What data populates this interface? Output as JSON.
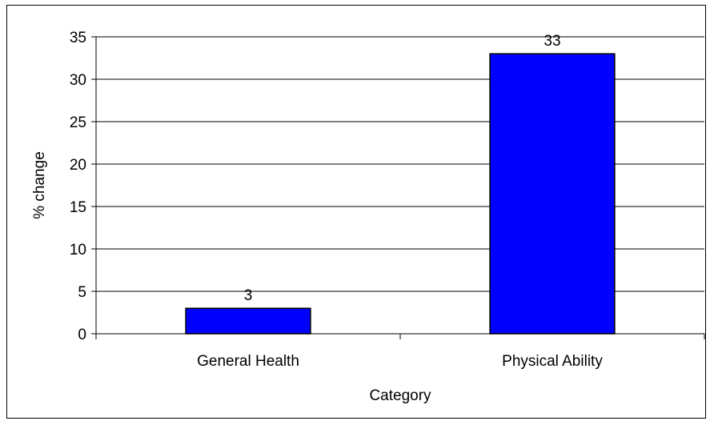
{
  "chart_data": {
    "type": "bar",
    "categories": [
      "General Health",
      "Physical Ability"
    ],
    "values": [
      3,
      33
    ],
    "data_labels": [
      "3",
      "33"
    ],
    "xlabel": "Category",
    "ylabel": "% change",
    "ylim": [
      0,
      35
    ],
    "yticks": [
      "0",
      "5",
      "10",
      "15",
      "20",
      "25",
      "30",
      "35"
    ],
    "grid": true,
    "legend": "none",
    "colors": {
      "bar_fill": "#0000FF",
      "bar_stroke": "#000000",
      "grid": "#000000",
      "background": "#FFFFFF"
    }
  }
}
